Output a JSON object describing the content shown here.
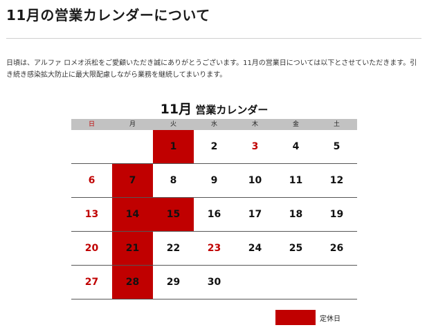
{
  "page": {
    "title": "11月の営業カレンダーについて",
    "intro": "日頃は、アルファ ロメオ浜松をご愛顧いただき誠にありがとうございます。11月の営業日については以下とさせていただきます。引き続き感染拡大防止に最大限配慮しながら業務を継続してまいります。"
  },
  "calendar": {
    "title_month": "11月",
    "title_text": "営業カレンダー",
    "weekdays": [
      "日",
      "月",
      "火",
      "水",
      "木",
      "金",
      "土"
    ],
    "weeks": [
      [
        {
          "day": "",
          "closed": false,
          "red": false
        },
        {
          "day": "",
          "closed": false,
          "red": false
        },
        {
          "day": "1",
          "closed": true,
          "red": false
        },
        {
          "day": "2",
          "closed": false,
          "red": false
        },
        {
          "day": "3",
          "closed": false,
          "red": true
        },
        {
          "day": "4",
          "closed": false,
          "red": false
        },
        {
          "day": "5",
          "closed": false,
          "red": false
        }
      ],
      [
        {
          "day": "6",
          "closed": false,
          "red": true
        },
        {
          "day": "7",
          "closed": true,
          "red": false
        },
        {
          "day": "8",
          "closed": false,
          "red": false
        },
        {
          "day": "9",
          "closed": false,
          "red": false
        },
        {
          "day": "10",
          "closed": false,
          "red": false
        },
        {
          "day": "11",
          "closed": false,
          "red": false
        },
        {
          "day": "12",
          "closed": false,
          "red": false
        }
      ],
      [
        {
          "day": "13",
          "closed": false,
          "red": true
        },
        {
          "day": "14",
          "closed": true,
          "red": false
        },
        {
          "day": "15",
          "closed": true,
          "red": false
        },
        {
          "day": "16",
          "closed": false,
          "red": false
        },
        {
          "day": "17",
          "closed": false,
          "red": false
        },
        {
          "day": "18",
          "closed": false,
          "red": false
        },
        {
          "day": "19",
          "closed": false,
          "red": false
        }
      ],
      [
        {
          "day": "20",
          "closed": false,
          "red": true
        },
        {
          "day": "21",
          "closed": true,
          "red": false
        },
        {
          "day": "22",
          "closed": false,
          "red": false
        },
        {
          "day": "23",
          "closed": false,
          "red": true
        },
        {
          "day": "24",
          "closed": false,
          "red": false
        },
        {
          "day": "25",
          "closed": false,
          "red": false
        },
        {
          "day": "26",
          "closed": false,
          "red": false
        }
      ],
      [
        {
          "day": "27",
          "closed": false,
          "red": true
        },
        {
          "day": "28",
          "closed": true,
          "red": false
        },
        {
          "day": "29",
          "closed": false,
          "red": false
        },
        {
          "day": "30",
          "closed": false,
          "red": false
        },
        {
          "day": "",
          "closed": false,
          "red": false
        },
        {
          "day": "",
          "closed": false,
          "red": false
        },
        {
          "day": "",
          "closed": false,
          "red": false
        }
      ]
    ],
    "legend_label": "定休日"
  },
  "colors": {
    "closed": "#c00000",
    "holiday_text": "#c00000",
    "header_bg": "#c2c2c2"
  }
}
